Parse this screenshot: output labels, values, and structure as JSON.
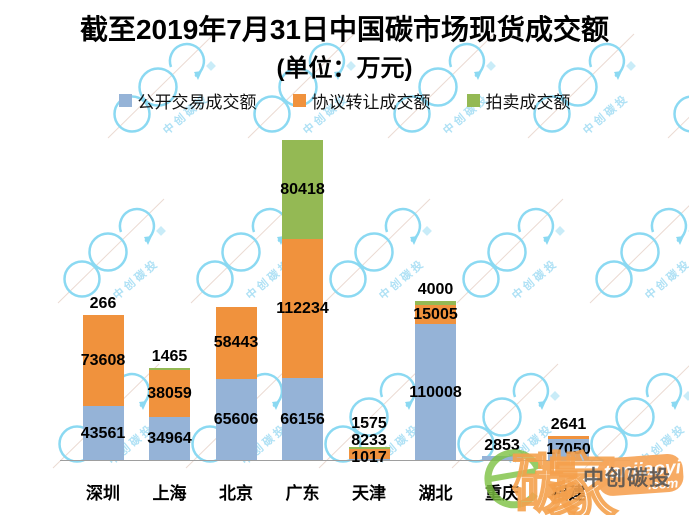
{
  "chart_data": {
    "type": "bar",
    "stacked": true,
    "title": "截至2019年7月31日中国碳市场现货成交额",
    "subtitle": "(单位：万元)",
    "unit": "万元",
    "categories": [
      "深圳",
      "上海",
      "北京",
      "广东",
      "天津",
      "湖北",
      "重庆",
      "福建"
    ],
    "series": [
      {
        "name": "公开交易成交额",
        "color": "#95B3D7",
        "values": [
          43561,
          34964,
          65606,
          66156,
          1017,
          110008,
          2853,
          17050
        ]
      },
      {
        "name": "协议转让成交额",
        "color": "#F0923D",
        "values": [
          73608,
          38059,
          58443,
          112234,
          8233,
          15005,
          0,
          2641
        ]
      },
      {
        "name": "拍卖成交额",
        "color": "#94B954",
        "values": [
          266,
          1465,
          0,
          80418,
          1575,
          4000,
          0,
          0
        ]
      }
    ],
    "ylim": [
      0,
      275000
    ],
    "grid": false,
    "legend_position": "top",
    "data_labels": true,
    "axis_line_color": "#9E9E9E",
    "label_color": "#000000"
  },
  "watermark": {
    "tile_text": "中创碳投",
    "corner": {
      "char1": "碳",
      "char2": "家",
      "badge_line1": "tanjiaoyi",
      "badge_line2": ".com",
      "brand": "中创碳投"
    }
  }
}
